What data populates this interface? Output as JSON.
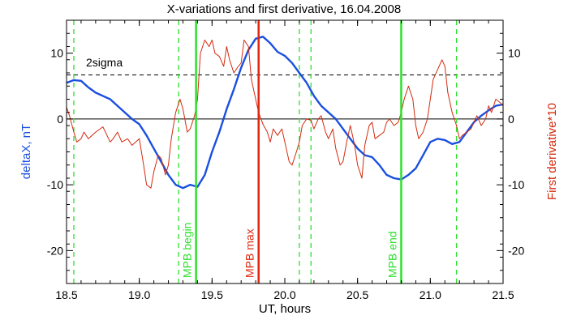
{
  "chart_data": {
    "type": "line",
    "title": "X-variations and first derivative, 16.04.2008",
    "xlabel": "UT, hours",
    "ylabel_left": "deltaX, nT",
    "ylabel_right": "First derivative*10",
    "xlim": [
      18.5,
      21.5
    ],
    "ylim": [
      -25,
      15
    ],
    "x_ticks": [
      18.5,
      19.0,
      19.5,
      20.0,
      20.5,
      21.0,
      21.5
    ],
    "x_tick_labels": [
      "18.5",
      "19.0",
      "19.5",
      "20.0",
      "20.5",
      "21.0",
      "21.5"
    ],
    "y_ticks": [
      -20,
      -10,
      0,
      10
    ],
    "y_tick_labels": [
      "-20",
      "-10",
      "0",
      "10"
    ],
    "colors": {
      "deltaX": "#1a4fe0",
      "derivative": "#d42a0e",
      "green": "#2ee02e",
      "red_marker": "#e02810",
      "sigma": "#000000"
    },
    "sigma_level": 6.7,
    "sigma_label": "2sigma",
    "series": [
      {
        "key": "deltaX",
        "x": [
          18.5,
          18.55,
          18.6,
          18.65,
          18.7,
          18.8,
          18.9,
          18.95,
          19.0,
          19.05,
          19.1,
          19.15,
          19.2,
          19.25,
          19.3,
          19.35,
          19.4,
          19.45,
          19.5,
          19.55,
          19.6,
          19.65,
          19.7,
          19.75,
          19.8,
          19.85,
          19.9,
          19.95,
          20.0,
          20.05,
          20.1,
          20.15,
          20.2,
          20.25,
          20.3,
          20.35,
          20.4,
          20.45,
          20.5,
          20.55,
          20.6,
          20.65,
          20.7,
          20.75,
          20.8,
          20.85,
          20.9,
          20.95,
          21.0,
          21.05,
          21.1,
          21.15,
          21.2,
          21.25,
          21.3,
          21.35,
          21.4,
          21.45,
          21.5
        ],
        "y": [
          5.5,
          5.9,
          5.8,
          4.8,
          4.0,
          3.0,
          1.0,
          0.0,
          -0.8,
          -2.5,
          -4.5,
          -6.5,
          -8.5,
          -10.0,
          -10.5,
          -10.0,
          -10.3,
          -8.5,
          -5.0,
          -2.0,
          1.5,
          4.5,
          7.8,
          10.5,
          12.2,
          12.5,
          11.5,
          10.2,
          9.6,
          8.5,
          7.0,
          5.5,
          3.5,
          2.0,
          1.0,
          0.0,
          -1.5,
          -3.0,
          -4.5,
          -5.5,
          -5.8,
          -7.0,
          -8.5,
          -9.0,
          -9.2,
          -8.5,
          -7.5,
          -5.5,
          -3.5,
          -3.0,
          -3.2,
          -3.8,
          -3.5,
          -2.0,
          -0.5,
          0.5,
          1.3,
          2.0,
          2.2
        ]
      },
      {
        "key": "derivative",
        "x": [
          18.5,
          18.52,
          18.55,
          18.57,
          18.6,
          18.62,
          18.65,
          18.7,
          18.75,
          18.8,
          18.82,
          18.85,
          18.88,
          18.92,
          18.95,
          19.0,
          19.03,
          19.05,
          19.08,
          19.1,
          19.13,
          19.15,
          19.18,
          19.2,
          19.22,
          19.25,
          19.28,
          19.3,
          19.33,
          19.35,
          19.38,
          19.4,
          19.42,
          19.45,
          19.48,
          19.5,
          19.52,
          19.55,
          19.58,
          19.6,
          19.62,
          19.65,
          19.68,
          19.7,
          19.72,
          19.75,
          19.77,
          19.8,
          19.82,
          19.85,
          19.88,
          19.9,
          19.92,
          19.95,
          19.98,
          20.0,
          20.03,
          20.05,
          20.08,
          20.1,
          20.12,
          20.15,
          20.18,
          20.2,
          20.23,
          20.25,
          20.28,
          20.3,
          20.33,
          20.35,
          20.38,
          20.4,
          20.43,
          20.45,
          20.48,
          20.5,
          20.53,
          20.55,
          20.58,
          20.6,
          20.62,
          20.65,
          20.68,
          20.7,
          20.72,
          20.75,
          20.78,
          20.8,
          20.82,
          20.85,
          20.88,
          20.9,
          20.92,
          20.95,
          20.98,
          21.0,
          21.02,
          21.05,
          21.08,
          21.1,
          21.12,
          21.15,
          21.18,
          21.2,
          21.22,
          21.25,
          21.28,
          21.3,
          21.32,
          21.35,
          21.38,
          21.4,
          21.42,
          21.45,
          21.48,
          21.5
        ],
        "y": [
          1.8,
          0.5,
          -2.0,
          -3.5,
          -3.0,
          -2.0,
          -3.0,
          -2.0,
          -1.2,
          -3.5,
          -3.0,
          -2.0,
          -3.5,
          -3.0,
          -4.0,
          -3.0,
          -7.0,
          -10.0,
          -10.5,
          -8.0,
          -5.5,
          -6.0,
          -8.5,
          -7.0,
          -3.0,
          1.0,
          3.0,
          1.5,
          -2.0,
          -1.5,
          0.5,
          3.0,
          10.0,
          12.0,
          11.0,
          12.0,
          10.0,
          9.5,
          8.0,
          11.0,
          9.0,
          7.0,
          8.0,
          8.5,
          12.0,
          11.0,
          6.0,
          3.0,
          1.0,
          -0.8,
          -2.0,
          -3.5,
          -1.5,
          -2.5,
          -1.5,
          -3.5,
          -6.5,
          -7.0,
          -5.0,
          -3.5,
          -1.0,
          0.0,
          -0.2,
          -1.5,
          0.0,
          0.5,
          -2.0,
          -3.0,
          -1.5,
          -4.5,
          -7.0,
          -6.5,
          -3.0,
          -1.0,
          -4.0,
          -7.0,
          -9.0,
          -4.0,
          -1.0,
          -0.5,
          -3.0,
          -2.5,
          -2.0,
          -0.5,
          0.0,
          -1.0,
          -0.5,
          1.0,
          3.0,
          5.0,
          3.0,
          -1.0,
          -3.0,
          -2.0,
          0.0,
          3.0,
          6.0,
          7.5,
          9.0,
          8.0,
          4.0,
          1.0,
          -1.0,
          -3.0,
          -2.5,
          -2.0,
          -1.5,
          -0.5,
          0.5,
          -1.0,
          0.0,
          2.0,
          1.0,
          3.0,
          2.5,
          2.0
        ]
      }
    ],
    "dashed_green_lines_x": [
      18.55,
      19.27,
      20.1,
      20.18,
      21.18
    ],
    "markers": [
      {
        "x": 19.39,
        "label": "MPB begin",
        "kind": "green"
      },
      {
        "x": 19.82,
        "label": "MPB max",
        "kind": "red"
      },
      {
        "x": 20.8,
        "label": "MPB end",
        "kind": "green"
      }
    ]
  }
}
